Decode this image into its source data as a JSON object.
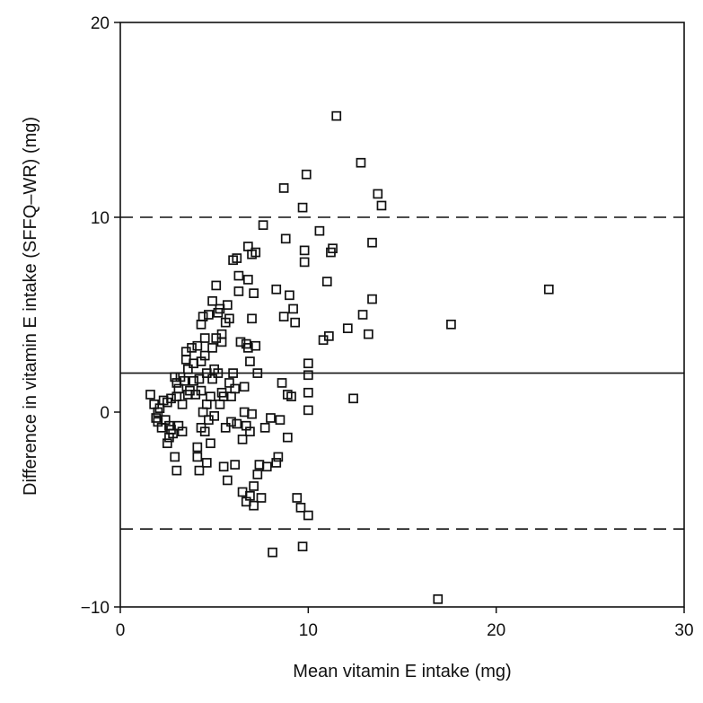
{
  "chart_data": {
    "type": "scatter",
    "title": "",
    "xlabel": "Mean vitamin E intake (mg)",
    "ylabel": "Difference in vitamin E intake (SFFQ–WR) (mg)",
    "xlim": [
      0,
      30
    ],
    "ylim": [
      -10,
      20
    ],
    "x_ticks": [
      0,
      10,
      20,
      30
    ],
    "y_ticks": [
      -10,
      0,
      10,
      20
    ],
    "grid": false,
    "legend": "none",
    "marker": "open-square",
    "colors": {
      "marker": "#111111",
      "lines": "#111111",
      "background": "#ffffff"
    },
    "reference_lines": [
      {
        "name": "upper-limit",
        "y": 10,
        "style": "dashed"
      },
      {
        "name": "mean-difference",
        "y": 2,
        "style": "solid"
      },
      {
        "name": "lower-limit",
        "y": -6,
        "style": "dashed"
      }
    ],
    "points": [
      [
        1.6,
        0.9
      ],
      [
        1.8,
        0.4
      ],
      [
        1.9,
        -0.3
      ],
      [
        2.0,
        0.0
      ],
      [
        2.0,
        -0.5
      ],
      [
        2.1,
        0.2
      ],
      [
        2.2,
        -0.8
      ],
      [
        2.3,
        0.6
      ],
      [
        2.4,
        -0.4
      ],
      [
        2.5,
        0.5
      ],
      [
        2.5,
        -1.6
      ],
      [
        2.6,
        -0.7
      ],
      [
        2.6,
        -1.3
      ],
      [
        2.7,
        0.7
      ],
      [
        2.7,
        -0.9
      ],
      [
        2.8,
        -1.1
      ],
      [
        2.9,
        1.8
      ],
      [
        2.9,
        -2.3
      ],
      [
        3.0,
        -3.0
      ],
      [
        3.0,
        0.8
      ],
      [
        3.0,
        1.5
      ],
      [
        3.1,
        1.2
      ],
      [
        3.1,
        -0.7
      ],
      [
        3.2,
        1.8
      ],
      [
        3.3,
        -1.0
      ],
      [
        3.3,
        0.4
      ],
      [
        3.4,
        1.6
      ],
      [
        3.5,
        2.7
      ],
      [
        3.5,
        3.1
      ],
      [
        3.6,
        0.9
      ],
      [
        3.6,
        2.2
      ],
      [
        3.7,
        1.1
      ],
      [
        3.8,
        3.3
      ],
      [
        3.9,
        1.6
      ],
      [
        3.9,
        2.5
      ],
      [
        4.0,
        0.9
      ],
      [
        4.1,
        3.4
      ],
      [
        4.1,
        -1.8
      ],
      [
        4.1,
        -2.3
      ],
      [
        4.2,
        1.7
      ],
      [
        4.2,
        -3.0
      ],
      [
        4.3,
        2.6
      ],
      [
        4.3,
        -0.8
      ],
      [
        4.3,
        1.1
      ],
      [
        4.3,
        4.5
      ],
      [
        4.4,
        4.9
      ],
      [
        4.4,
        0.0
      ],
      [
        4.5,
        2.9
      ],
      [
        4.5,
        3.8
      ],
      [
        4.5,
        -1.0
      ],
      [
        4.6,
        0.4
      ],
      [
        4.6,
        2.0
      ],
      [
        4.6,
        -2.6
      ],
      [
        4.7,
        5.0
      ],
      [
        4.7,
        -0.4
      ],
      [
        4.8,
        0.8
      ],
      [
        4.8,
        -1.6
      ],
      [
        4.9,
        1.7
      ],
      [
        4.9,
        5.7
      ],
      [
        4.9,
        3.3
      ],
      [
        5.0,
        2.2
      ],
      [
        5.0,
        -0.2
      ],
      [
        5.1,
        3.8
      ],
      [
        5.1,
        6.5
      ],
      [
        5.2,
        5.1
      ],
      [
        5.2,
        2.0
      ],
      [
        5.3,
        5.3
      ],
      [
        5.3,
        0.4
      ],
      [
        5.4,
        1.0
      ],
      [
        5.4,
        4.0
      ],
      [
        5.4,
        3.6
      ],
      [
        5.5,
        -2.8
      ],
      [
        5.5,
        0.8
      ],
      [
        5.6,
        -0.8
      ],
      [
        5.6,
        4.6
      ],
      [
        5.7,
        -3.5
      ],
      [
        5.7,
        5.5
      ],
      [
        5.8,
        4.8
      ],
      [
        5.8,
        1.5
      ],
      [
        5.9,
        0.8
      ],
      [
        5.9,
        -0.5
      ],
      [
        6.0,
        7.8
      ],
      [
        6.0,
        2.0
      ],
      [
        6.1,
        1.2
      ],
      [
        6.1,
        -2.7
      ],
      [
        6.2,
        7.9
      ],
      [
        6.2,
        -0.6
      ],
      [
        6.3,
        7.0
      ],
      [
        6.3,
        6.2
      ],
      [
        6.4,
        3.6
      ],
      [
        6.5,
        -4.1
      ],
      [
        6.5,
        -1.4
      ],
      [
        6.6,
        0.0
      ],
      [
        6.6,
        1.3
      ],
      [
        6.7,
        -0.7
      ],
      [
        6.7,
        3.5
      ],
      [
        6.7,
        -4.6
      ],
      [
        6.8,
        8.5
      ],
      [
        6.8,
        6.8
      ],
      [
        6.8,
        3.3
      ],
      [
        6.9,
        2.6
      ],
      [
        6.9,
        -1.0
      ],
      [
        6.9,
        -4.3
      ],
      [
        7.0,
        8.1
      ],
      [
        7.0,
        4.8
      ],
      [
        7.0,
        -0.1
      ],
      [
        7.1,
        6.1
      ],
      [
        7.1,
        -4.8
      ],
      [
        7.1,
        -3.8
      ],
      [
        7.2,
        8.2
      ],
      [
        7.2,
        3.4
      ],
      [
        7.3,
        2.0
      ],
      [
        7.3,
        -3.2
      ],
      [
        7.4,
        -2.7
      ],
      [
        7.5,
        -4.4
      ],
      [
        7.6,
        9.6
      ],
      [
        7.7,
        -0.8
      ],
      [
        7.8,
        -2.8
      ],
      [
        8.0,
        -0.3
      ],
      [
        8.1,
        -7.2
      ],
      [
        8.3,
        -2.6
      ],
      [
        8.3,
        6.3
      ],
      [
        8.4,
        -2.3
      ],
      [
        8.5,
        -0.4
      ],
      [
        8.6,
        1.5
      ],
      [
        8.7,
        11.5
      ],
      [
        8.7,
        4.9
      ],
      [
        8.8,
        8.9
      ],
      [
        8.9,
        -1.3
      ],
      [
        8.9,
        0.9
      ],
      [
        9.0,
        6.0
      ],
      [
        9.1,
        0.8
      ],
      [
        9.2,
        5.3
      ],
      [
        9.3,
        4.6
      ],
      [
        9.4,
        -4.4
      ],
      [
        9.6,
        -4.9
      ],
      [
        9.7,
        10.5
      ],
      [
        9.7,
        -6.9
      ],
      [
        9.8,
        8.3
      ],
      [
        9.8,
        7.7
      ],
      [
        9.9,
        12.2
      ],
      [
        10.0,
        2.5
      ],
      [
        10.0,
        1.9
      ],
      [
        10.0,
        1.0
      ],
      [
        10.0,
        0.1
      ],
      [
        10.0,
        -5.3
      ],
      [
        10.6,
        9.3
      ],
      [
        10.8,
        3.7
      ],
      [
        11.0,
        6.7
      ],
      [
        11.1,
        3.9
      ],
      [
        11.2,
        8.2
      ],
      [
        11.3,
        8.4
      ],
      [
        11.5,
        15.2
      ],
      [
        12.1,
        4.3
      ],
      [
        12.4,
        0.7
      ],
      [
        12.8,
        12.8
      ],
      [
        12.9,
        5.0
      ],
      [
        13.2,
        4.0
      ],
      [
        13.4,
        8.7
      ],
      [
        13.4,
        5.8
      ],
      [
        13.7,
        11.2
      ],
      [
        13.9,
        10.6
      ],
      [
        16.9,
        -9.6
      ],
      [
        17.6,
        4.5
      ],
      [
        22.8,
        6.3
      ]
    ]
  }
}
